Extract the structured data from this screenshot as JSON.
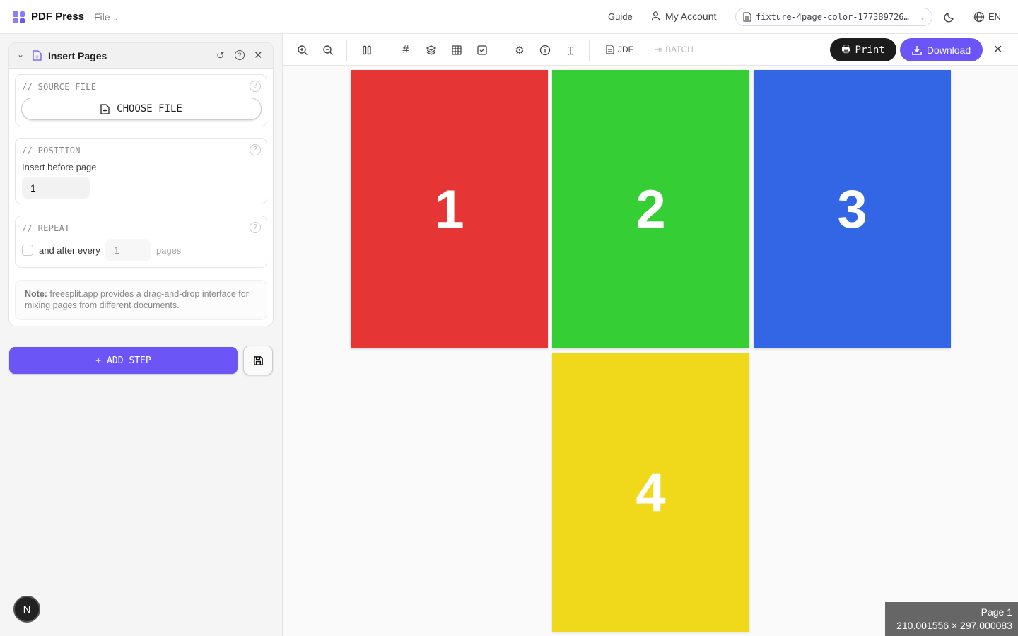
{
  "app": {
    "name": "PDF Press",
    "file_menu": "File"
  },
  "topbar": {
    "guide": "Guide",
    "account": "My Account",
    "current_file": "fixture-4page-color-177389726…",
    "language": "EN"
  },
  "panel": {
    "title": "Insert Pages",
    "source": {
      "label": "// SOURCE FILE",
      "button": "CHOOSE FILE"
    },
    "position": {
      "label": "// POSITION",
      "field_label": "Insert before page",
      "value": "1"
    },
    "repeat": {
      "label": "// REPEAT",
      "checkbox_label": "and after every",
      "value": "1",
      "unit": "pages",
      "checked": false
    },
    "note": {
      "bold": "Note:",
      "text": " freesplit.app provides a drag-and-drop interface for mixing pages from different documents."
    }
  },
  "add_step": "ADD STEP",
  "toolbar": {
    "jdf": "JDF",
    "batch": "BATCH",
    "print": "Print",
    "download": "Download"
  },
  "pages": [
    {
      "label": "1",
      "color": "#e53535"
    },
    {
      "label": "2",
      "color": "#35cf35"
    },
    {
      "label": "3",
      "color": "#3366e5"
    },
    {
      "label": "4",
      "color": "#f0d81a"
    }
  ],
  "status": {
    "page": "Page 1",
    "size": "210.001556 × 297.000083"
  },
  "colors": {
    "accent": "#6c55f7",
    "print_bg": "#1c1c1c"
  },
  "avatar": "N"
}
